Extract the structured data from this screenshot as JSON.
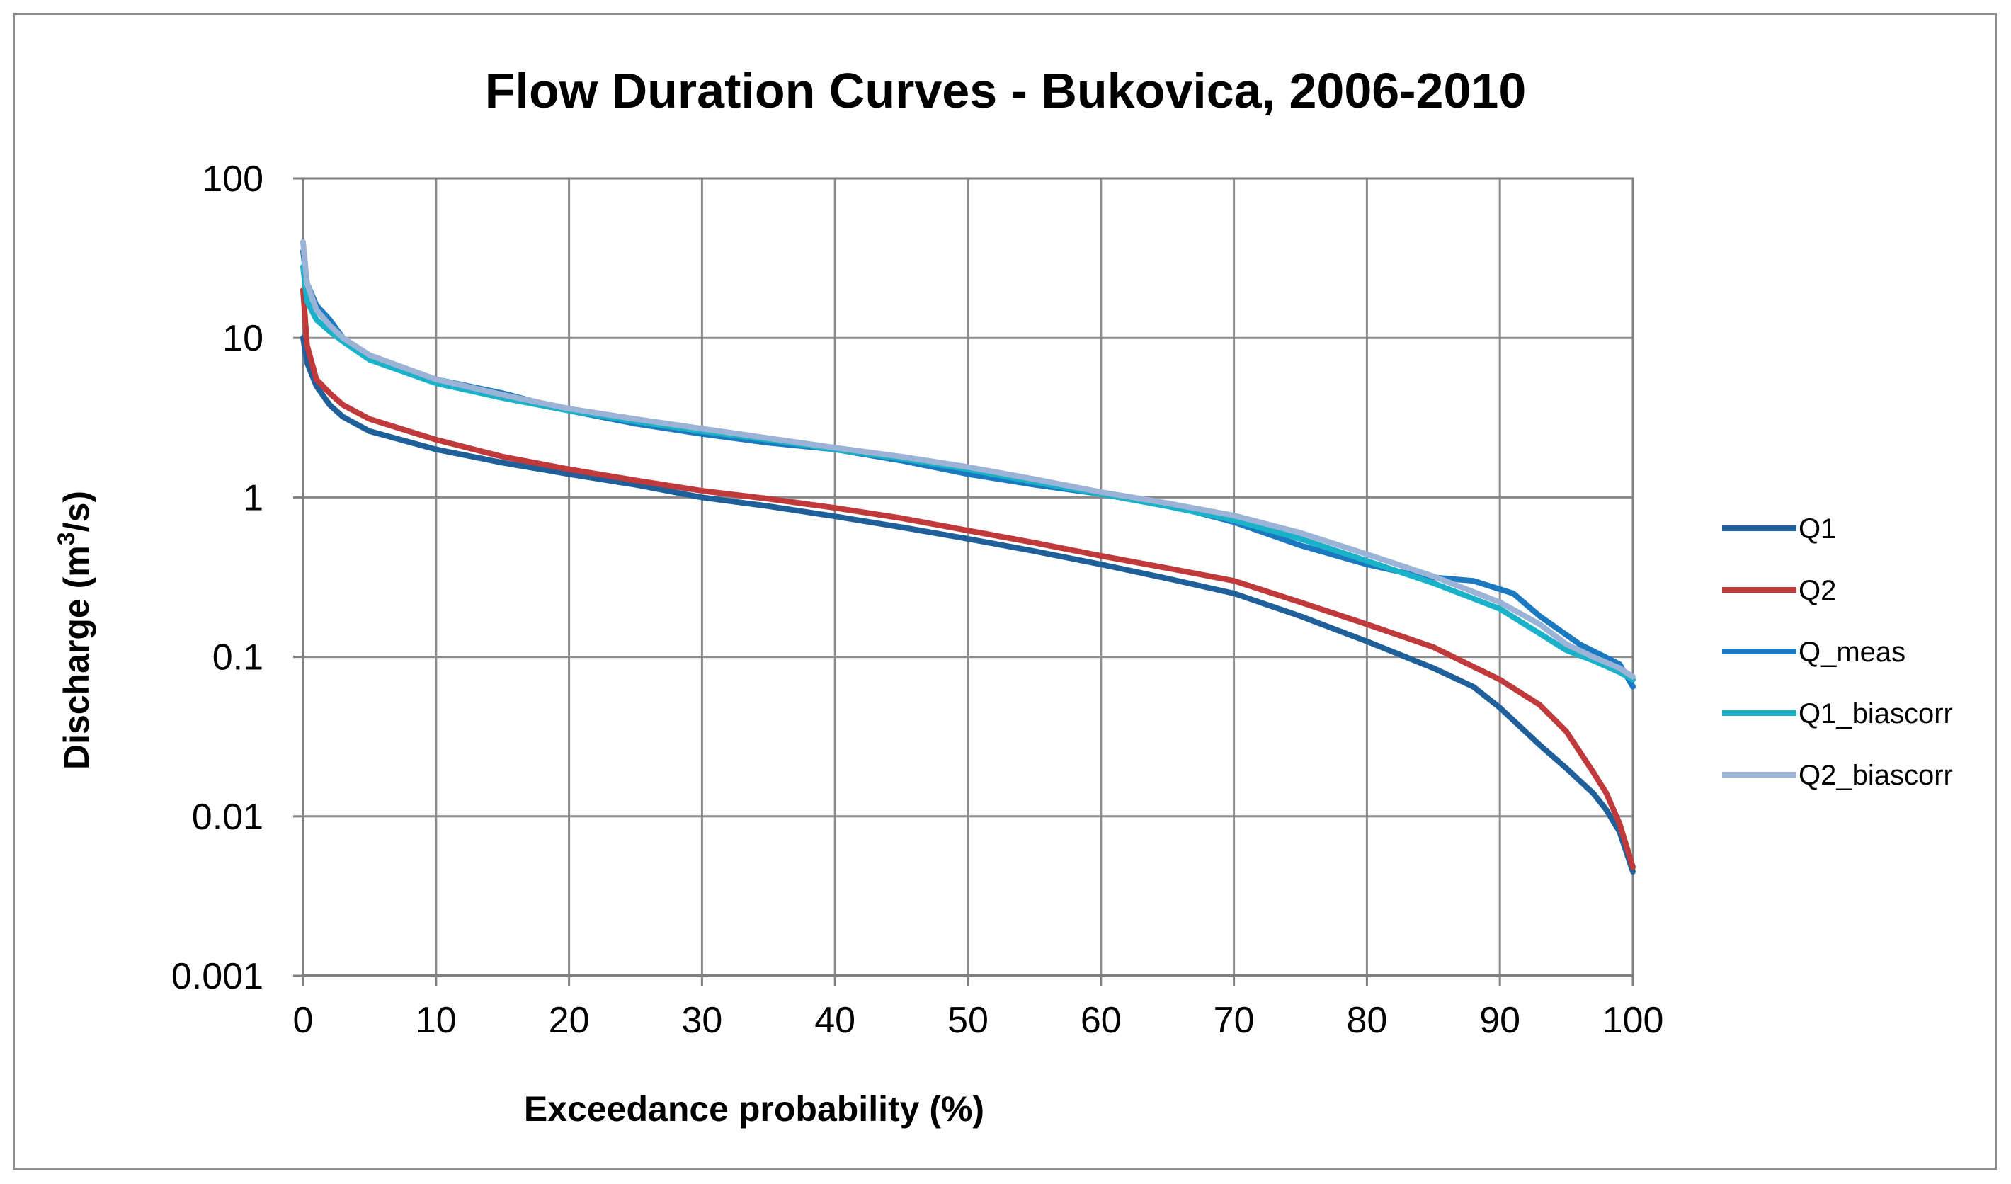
{
  "chart_data": {
    "type": "line",
    "title": "Flow Duration Curves - Bukovica, 2006-2010",
    "xlabel": "Exceedance probability (%)",
    "ylabel_main": "Discharge (m",
    "ylabel_sup": "3",
    "ylabel_end": "/s)",
    "x_scale": "linear",
    "y_scale": "log",
    "xlim": [
      0,
      100
    ],
    "ylim": [
      0.001,
      100
    ],
    "x_ticks": [
      0,
      10,
      20,
      30,
      40,
      50,
      60,
      70,
      80,
      90,
      100
    ],
    "x_tick_labels": [
      "0",
      "10",
      "20",
      "30",
      "40",
      "50",
      "60",
      "70",
      "80",
      "90",
      "100"
    ],
    "y_ticks": [
      100,
      10,
      1,
      0.1,
      0.01,
      0.001
    ],
    "y_tick_labels": [
      "100",
      "10",
      "1",
      "0.1",
      "0.01",
      "0.001"
    ],
    "grid": true,
    "legend_position": "right",
    "series": [
      {
        "name": "Q1",
        "color": "#1f5f9a",
        "x": [
          0,
          0.3,
          1,
          2,
          3,
          5,
          10,
          15,
          20,
          25,
          30,
          35,
          40,
          45,
          50,
          55,
          60,
          65,
          70,
          75,
          80,
          85,
          88,
          90,
          93,
          95,
          97,
          98,
          99,
          100
        ],
        "y": [
          10,
          7,
          5,
          3.8,
          3.2,
          2.6,
          2.0,
          1.65,
          1.4,
          1.2,
          1.0,
          0.88,
          0.76,
          0.65,
          0.55,
          0.46,
          0.38,
          0.31,
          0.25,
          0.18,
          0.125,
          0.085,
          0.065,
          0.048,
          0.028,
          0.02,
          0.014,
          0.011,
          0.008,
          0.0045
        ]
      },
      {
        "name": "Q2",
        "color": "#c0393b",
        "x": [
          0,
          0.3,
          1,
          2,
          3,
          5,
          10,
          15,
          20,
          25,
          30,
          35,
          40,
          45,
          50,
          55,
          60,
          65,
          70,
          75,
          80,
          85,
          90,
          93,
          95,
          97,
          98,
          99,
          100
        ],
        "y": [
          20,
          9,
          5.5,
          4.5,
          3.8,
          3.1,
          2.3,
          1.8,
          1.5,
          1.28,
          1.1,
          0.98,
          0.86,
          0.74,
          0.62,
          0.52,
          0.43,
          0.36,
          0.3,
          0.22,
          0.16,
          0.115,
          0.072,
          0.05,
          0.034,
          0.019,
          0.014,
          0.009,
          0.0048
        ]
      },
      {
        "name": "Q_meas",
        "color": "#1b79c1",
        "x": [
          0,
          0.3,
          1,
          2,
          3,
          5,
          10,
          15,
          20,
          25,
          30,
          35,
          40,
          45,
          50,
          55,
          60,
          65,
          70,
          75,
          80,
          84,
          88,
          91,
          93,
          96,
          99,
          100
        ],
        "y": [
          35,
          22,
          16,
          13,
          10,
          7.5,
          5.5,
          4.5,
          3.5,
          2.9,
          2.5,
          2.2,
          2.0,
          1.7,
          1.4,
          1.2,
          1.05,
          0.9,
          0.7,
          0.5,
          0.38,
          0.32,
          0.3,
          0.25,
          0.18,
          0.12,
          0.09,
          0.065
        ]
      },
      {
        "name": "Q1_biascorr",
        "color": "#19b2c9",
        "x": [
          0,
          0.3,
          1,
          2,
          3,
          5,
          10,
          15,
          20,
          25,
          30,
          35,
          40,
          45,
          50,
          55,
          60,
          65,
          70,
          75,
          80,
          85,
          90,
          93,
          95,
          97,
          99,
          100
        ],
        "y": [
          28,
          17,
          13,
          11,
          9.5,
          7.3,
          5.2,
          4.2,
          3.5,
          3.0,
          2.6,
          2.3,
          2.0,
          1.75,
          1.5,
          1.25,
          1.05,
          0.88,
          0.72,
          0.55,
          0.4,
          0.29,
          0.2,
          0.14,
          0.11,
          0.095,
          0.08,
          0.072
        ]
      },
      {
        "name": "Q2_biascorr",
        "color": "#9bb3d6",
        "x": [
          0,
          0.3,
          1,
          2,
          3,
          5,
          10,
          15,
          20,
          25,
          30,
          35,
          40,
          45,
          50,
          55,
          60,
          65,
          70,
          75,
          80,
          85,
          90,
          93,
          95,
          97,
          99,
          100
        ],
        "y": [
          40,
          22,
          15,
          12,
          10,
          7.8,
          5.5,
          4.4,
          3.6,
          3.1,
          2.7,
          2.35,
          2.05,
          1.8,
          1.55,
          1.3,
          1.08,
          0.92,
          0.77,
          0.6,
          0.44,
          0.32,
          0.22,
          0.16,
          0.12,
          0.1,
          0.085,
          0.075
        ]
      }
    ]
  }
}
